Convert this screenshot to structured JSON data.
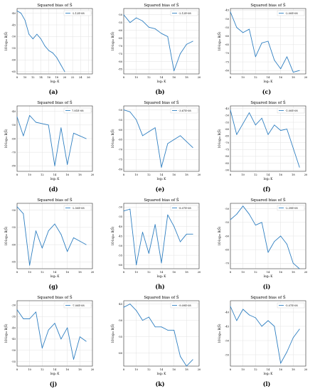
{
  "figure": {
    "subplots": [
      {
        "panel_label": "(a)",
        "title": "Squared bias of Ŝ",
        "xlabel": "log₂ K",
        "ylabel": "10·log₁₀ B(Ŝ)",
        "legend": "-2.12E-08",
        "xlim": [
          8,
          27
        ],
        "xticks": [
          8,
          10,
          12,
          14,
          16,
          18,
          20,
          22,
          24,
          26
        ],
        "ylim": [
          -66,
          -38
        ],
        "yticks": [
          -40,
          -45,
          -50,
          -55,
          -60,
          -65
        ]
      },
      {
        "panel_label": "(b)",
        "title": "Squared bias of Ŝ",
        "xlabel": "log₂ K",
        "ylabel": "10·log₁₀ B(Ŝ)",
        "legend": "-2.12E-08",
        "xlim": [
          8,
          20
        ],
        "xticks": [
          8,
          10,
          12,
          14,
          16,
          18,
          20
        ],
        "ylim": [
          -88,
          -46
        ],
        "yticks": [
          -50,
          -55,
          -60,
          -65,
          -70,
          -75,
          -80,
          -85
        ]
      },
      {
        "panel_label": "(c)",
        "title": "Squared bias of Ŝ",
        "xlabel": "log₂ K",
        "ylabel": "10·log₁₀ B(Ŝ)",
        "legend": "-2.00E-08",
        "xlim": [
          8,
          20
        ],
        "xticks": [
          8,
          10,
          12,
          14,
          16,
          18,
          20
        ],
        "ylim": [
          -82,
          -44
        ],
        "yticks": [
          -45,
          -50,
          -55,
          -60,
          -65,
          -70,
          -75,
          -80
        ]
      },
      {
        "panel_label": "(d)",
        "title": "Squared bias of Ŝ",
        "xlabel": "log₂ K",
        "ylabel": "10·log₁₀ B(Ŝ)",
        "legend": "7.81E-08",
        "xlim": [
          8,
          20
        ],
        "xticks": [
          8,
          10,
          12,
          14,
          16,
          18,
          20
        ],
        "ylim": [
          -84,
          -36
        ],
        "yticks": [
          -40,
          -50,
          -60,
          -70,
          -80
        ]
      },
      {
        "panel_label": "(e)",
        "title": "Squared bias of Ŝ",
        "xlabel": "log₂ K",
        "ylabel": "10·log₁₀ B(Ŝ)",
        "legend": "-3.67E-08",
        "xlim": [
          8,
          20
        ],
        "xticks": [
          8,
          10,
          12,
          14,
          16,
          18,
          20
        ],
        "ylim": [
          -81,
          -48
        ],
        "yticks": [
          -50,
          -55,
          -60,
          -65,
          -70,
          -75,
          -80
        ]
      },
      {
        "panel_label": "(f)",
        "title": "Squared bias of Ŝ",
        "xlabel": "log₂ K",
        "ylabel": "10·log₁₀ B(Ŝ)",
        "legend": "-1.00E-08",
        "xlim": [
          8,
          20
        ],
        "xticks": [
          8,
          10,
          12,
          14,
          16,
          18,
          20
        ],
        "ylim": [
          -91,
          -43
        ],
        "yticks": [
          -45,
          -50,
          -55,
          -60,
          -65,
          -70,
          -75,
          -80,
          -85,
          -90
        ]
      },
      {
        "panel_label": "(g)",
        "title": "Squared bias of Ŝ",
        "xlabel": "log₂ K",
        "ylabel": "10·log₁₀ B(Ŝ)",
        "legend": "-2.50E-08",
        "xlim": [
          8,
          20
        ],
        "xticks": [
          8,
          10,
          12,
          14,
          16,
          18,
          20
        ],
        "ylim": [
          -67,
          -48
        ],
        "yticks": [
          -50,
          -55,
          -60,
          -65
        ]
      },
      {
        "panel_label": "(h)",
        "title": "Squared bias of Ŝ",
        "xlabel": "log₂ K",
        "ylabel": "10·log₁₀ B(Ŝ)",
        "legend": "-8.07E-08",
        "xlim": [
          8,
          20
        ],
        "xticks": [
          8,
          10,
          12,
          14,
          16,
          18,
          20
        ],
        "ylim": [
          -62,
          -28
        ],
        "yticks": [
          -30,
          -35,
          -40,
          -45,
          -50,
          -55,
          -60
        ]
      },
      {
        "panel_label": "(i)",
        "title": "Squared bias of Ŝ",
        "xlabel": "log₂ K",
        "ylabel": "10·log₁₀ B(Ŝ)",
        "legend": "-2.39E-08",
        "xlim": [
          8,
          20
        ],
        "xticks": [
          8,
          10,
          12,
          14,
          16,
          18,
          20
        ],
        "ylim": [
          -72,
          -48
        ],
        "yticks": [
          -50,
          -55,
          -60,
          -65,
          -70
        ]
      },
      {
        "panel_label": "(j)",
        "title": "Squared bias of Ŝ",
        "xlabel": "log₂ K",
        "ylabel": "10·log₁₀ B(Ŝ)",
        "legend": "-7.00E-08",
        "xlim": [
          8,
          20
        ],
        "xticks": [
          8,
          10,
          12,
          14,
          16,
          18,
          20
        ],
        "ylim": [
          -57,
          -28
        ],
        "yticks": [
          -30,
          -35,
          -40,
          -45,
          -50,
          -55
        ]
      },
      {
        "panel_label": "(k)",
        "title": "Squared bias of Ŝ",
        "xlabel": "log₂ K",
        "ylabel": "10·log₁₀ B(Ŝ)",
        "legend": "-9.09E-08",
        "xlim": [
          8,
          20
        ],
        "xticks": [
          8,
          10,
          12,
          14,
          16,
          18,
          20
        ],
        "ylim": [
          -64,
          -44
        ],
        "yticks": [
          -45,
          -50,
          -55,
          -60
        ]
      },
      {
        "panel_label": "(l)",
        "title": "Squared bias of Ŝ",
        "xlabel": "log₂ K",
        "ylabel": "10·log₁₀ B(Ŝ)",
        "legend": "-5.07E-08",
        "xlim": [
          8,
          20
        ],
        "xticks": [
          8,
          10,
          12,
          14,
          16,
          18,
          20
        ],
        "ylim": [
          -59,
          -36
        ],
        "yticks": [
          -40,
          -45,
          -50,
          -55
        ]
      }
    ]
  },
  "chart_data": [
    {
      "type": "line",
      "title": "Squared bias of Ŝ",
      "xlabel": "log₂ K",
      "ylabel": "10·log₁₀ B(Ŝ)",
      "series": [
        {
          "name": "-2.12E-08",
          "x": [
            8,
            9,
            10,
            11,
            12,
            13,
            14,
            15,
            16,
            17,
            18,
            19,
            20
          ],
          "y": [
            -39,
            -40,
            -43,
            -49,
            -51,
            -49,
            -51,
            -54,
            -56,
            -57,
            -59,
            -62,
            -65
          ]
        }
      ],
      "xlim": [
        8,
        27
      ],
      "ylim": [
        -66,
        -38
      ],
      "grid": true,
      "legend_position": "top-right"
    },
    {
      "type": "line",
      "title": "Squared bias of Ŝ",
      "xlabel": "log₂ K",
      "ylabel": "10·log₁₀ B(Ŝ)",
      "series": [
        {
          "name": "-2.12E-08",
          "x": [
            8,
            9,
            10,
            11,
            12,
            13,
            14,
            15,
            16,
            17,
            18,
            19
          ],
          "y": [
            -50,
            -55,
            -52,
            -54,
            -58,
            -59,
            -62,
            -64,
            -86,
            -75,
            -69,
            -67
          ]
        }
      ],
      "xlim": [
        8,
        20
      ],
      "ylim": [
        -88,
        -46
      ],
      "grid": true,
      "legend_position": "top-right"
    },
    {
      "type": "line",
      "title": "Squared bias of Ŝ",
      "xlabel": "log₂ K",
      "ylabel": "10·log₁₀ B(Ŝ)",
      "series": [
        {
          "name": "-2.00E-08",
          "x": [
            8,
            9,
            10,
            11,
            12,
            13,
            14,
            15,
            16,
            17,
            18,
            19
          ],
          "y": [
            -46,
            -55,
            -58,
            -56,
            -72,
            -64,
            -63,
            -74,
            -79,
            -72,
            -81,
            -80
          ]
        }
      ],
      "xlim": [
        8,
        20
      ],
      "ylim": [
        -82,
        -44
      ],
      "grid": true,
      "legend_position": "top-right"
    },
    {
      "type": "line",
      "title": "Squared bias of Ŝ",
      "xlabel": "log₂ K",
      "ylabel": "10·log₁₀ B(Ŝ)",
      "series": [
        {
          "name": "7.81E-08",
          "x": [
            8,
            9,
            10,
            11,
            12,
            13,
            14,
            15,
            16,
            17,
            18,
            19
          ],
          "y": [
            -44,
            -58,
            -43,
            -48,
            -49,
            -50,
            -80,
            -52,
            -79,
            -56,
            -58,
            -60
          ]
        }
      ],
      "xlim": [
        8,
        20
      ],
      "ylim": [
        -84,
        -36
      ],
      "grid": true,
      "legend_position": "top-right"
    },
    {
      "type": "line",
      "title": "Squared bias of Ŝ",
      "xlabel": "log₂ K",
      "ylabel": "10·log₁₀ B(Ŝ)",
      "series": [
        {
          "name": "-3.67E-08",
          "x": [
            8,
            9,
            10,
            11,
            12,
            13,
            14,
            15,
            16,
            17,
            18,
            19
          ],
          "y": [
            -50,
            -51,
            -55,
            -63,
            -61,
            -59,
            -79,
            -67,
            -65,
            -63,
            -66,
            -69
          ]
        }
      ],
      "xlim": [
        8,
        20
      ],
      "ylim": [
        -81,
        -48
      ],
      "grid": true,
      "legend_position": "top-right"
    },
    {
      "type": "line",
      "title": "Squared bias of Ŝ",
      "xlabel": "log₂ K",
      "ylabel": "10·log₁₀ B(Ŝ)",
      "series": [
        {
          "name": "-1.00E-08",
          "x": [
            8,
            9,
            10,
            11,
            12,
            13,
            14,
            15,
            16,
            17,
            18,
            19
          ],
          "y": [
            -46,
            -64,
            -56,
            -48,
            -57,
            -52,
            -64,
            -57,
            -61,
            -60,
            -74,
            -88
          ]
        }
      ],
      "xlim": [
        8,
        20
      ],
      "ylim": [
        -91,
        -43
      ],
      "grid": true,
      "legend_position": "top-right"
    },
    {
      "type": "line",
      "title": "Squared bias of Ŝ",
      "xlabel": "log₂ K",
      "ylabel": "10·log₁₀ B(Ŝ)",
      "series": [
        {
          "name": "-2.50E-08",
          "x": [
            8,
            9,
            10,
            11,
            12,
            13,
            14,
            15,
            16,
            17,
            18,
            19
          ],
          "y": [
            -49,
            -51,
            -66,
            -56,
            -61,
            -56,
            -54,
            -57,
            -62,
            -58,
            -59,
            -60
          ]
        }
      ],
      "xlim": [
        8,
        20
      ],
      "ylim": [
        -67,
        -48
      ],
      "grid": true,
      "legend_position": "top-right"
    },
    {
      "type": "line",
      "title": "Squared bias of Ŝ",
      "xlabel": "log₂ K",
      "ylabel": "10·log₁₀ B(Ŝ)",
      "series": [
        {
          "name": "-8.07E-08",
          "x": [
            8,
            9,
            10,
            11,
            12,
            13,
            14,
            15,
            16,
            17,
            18,
            19
          ],
          "y": [
            -32,
            -31,
            -60,
            -43,
            -54,
            -39,
            -59,
            -34,
            -40,
            -48,
            -44,
            -44
          ]
        }
      ],
      "xlim": [
        8,
        20
      ],
      "ylim": [
        -62,
        -28
      ],
      "grid": true,
      "legend_position": "top-right"
    },
    {
      "type": "line",
      "title": "Squared bias of Ŝ",
      "xlabel": "log₂ K",
      "ylabel": "10·log₁₀ B(Ŝ)",
      "series": [
        {
          "name": "-2.39E-08",
          "x": [
            8,
            9,
            10,
            11,
            12,
            13,
            14,
            15,
            16,
            17,
            18,
            19
          ],
          "y": [
            -54,
            -52,
            -49,
            -52,
            -56,
            -55,
            -66,
            -62,
            -60,
            -63,
            -70,
            -72
          ]
        }
      ],
      "xlim": [
        8,
        20
      ],
      "ylim": [
        -72,
        -48
      ],
      "grid": true,
      "legend_position": "top-right"
    },
    {
      "type": "line",
      "title": "Squared bias of Ŝ",
      "xlabel": "log₂ K",
      "ylabel": "10·log₁₀ B(Ŝ)",
      "series": [
        {
          "name": "-7.00E-08",
          "x": [
            8,
            9,
            10,
            11,
            12,
            13,
            14,
            15,
            16,
            17,
            18,
            19
          ],
          "y": [
            -32,
            -36,
            -36,
            -33,
            -49,
            -41,
            -38,
            -45,
            -40,
            -54,
            -44,
            -46
          ]
        }
      ],
      "xlim": [
        8,
        20
      ],
      "ylim": [
        -57,
        -28
      ],
      "grid": true,
      "legend_position": "top-right"
    },
    {
      "type": "line",
      "title": "Squared bias of Ŝ",
      "xlabel": "log₂ K",
      "ylabel": "10·log₁₀ B(Ŝ)",
      "series": [
        {
          "name": "-9.09E-08",
          "x": [
            8,
            9,
            10,
            11,
            12,
            13,
            14,
            15,
            16,
            17,
            18,
            19
          ],
          "y": [
            -46,
            -45,
            -47,
            -50,
            -49,
            -52,
            -52,
            -53,
            -53,
            -61,
            -64,
            -62
          ]
        }
      ],
      "xlim": [
        8,
        20
      ],
      "ylim": [
        -64,
        -44
      ],
      "grid": true,
      "legend_position": "top-right"
    },
    {
      "type": "line",
      "title": "Squared bias of Ŝ",
      "xlabel": "log₂ K",
      "ylabel": "10·log₁₀ B(Ŝ)",
      "series": [
        {
          "name": "-5.07E-08",
          "x": [
            8,
            9,
            10,
            11,
            12,
            13,
            14,
            15,
            16,
            17,
            18,
            19
          ],
          "y": [
            -38,
            -43,
            -39,
            -41,
            -42,
            -45,
            -43,
            -45,
            -58,
            -54,
            -49,
            -46
          ]
        }
      ],
      "xlim": [
        8,
        20
      ],
      "ylim": [
        -59,
        -36
      ],
      "grid": true,
      "legend_position": "top-right"
    }
  ],
  "colors": {
    "line": "#2f7fc1",
    "axis": "#333333",
    "grid": "#e2e2e2",
    "text": "#000000"
  }
}
